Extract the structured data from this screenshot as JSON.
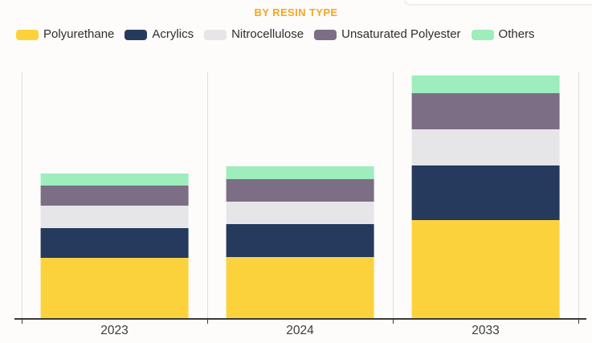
{
  "page": {
    "background": "#FDFCFA"
  },
  "chart_data": {
    "type": "bar",
    "stacked": true,
    "title": "BY RESIN TYPE",
    "title_color": "#F7A421",
    "xlabel": "",
    "ylabel": "",
    "categories": [
      "2023",
      "2024",
      "2033"
    ],
    "series": [
      {
        "name": "Polyurethane",
        "color": "#FCD23C",
        "values": [
          24.4,
          24.9,
          39.8
        ]
      },
      {
        "name": "Acrylics",
        "color": "#253A5C",
        "values": [
          12.1,
          13.4,
          22.2
        ]
      },
      {
        "name": "Nitrocellulose",
        "color": "#E6E6E8",
        "values": [
          9.2,
          9.2,
          14.9
        ]
      },
      {
        "name": "Unsaturated Polyester",
        "color": "#7C6E85",
        "values": [
          8.2,
          9.1,
          14.5
        ]
      },
      {
        "name": "Others",
        "color": "#9EEDBD",
        "values": [
          4.9,
          5.2,
          7.4
        ]
      }
    ],
    "ylim": [
      0,
      100
    ],
    "value_units": "relative units (no y-axis shown in chart)",
    "legend_position": "top-left",
    "grid": "vertical category separators only",
    "axis": {
      "line_color": "#3A3A3A",
      "grid_color": "#DEDDDC",
      "label_color": "#3C3C3C"
    }
  }
}
